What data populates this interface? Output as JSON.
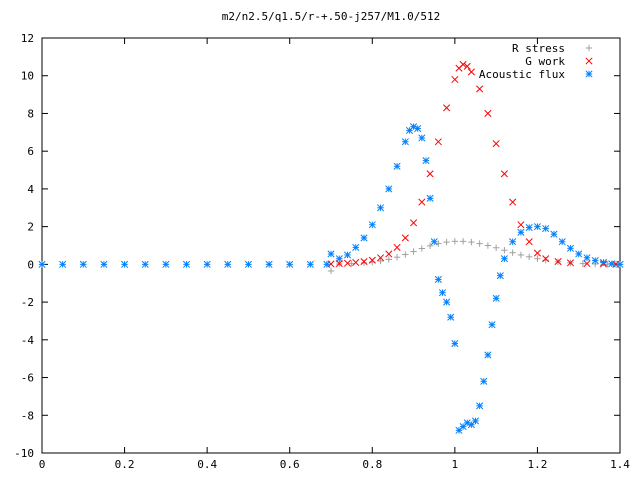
{
  "chart_data": {
    "type": "scatter",
    "title": "m2/n2.5/q1.5/r-+.50-j257/M1.0/512",
    "xlabel": "",
    "ylabel": "",
    "xlim": [
      0,
      1.4
    ],
    "ylim": [
      -10,
      12
    ],
    "x_ticks": [
      "0",
      "0.2",
      "0.4",
      "0.6",
      "0.8",
      "1",
      "1.2",
      "1.4"
    ],
    "y_ticks": [
      "-10",
      "-8",
      "-6",
      "-4",
      "-2",
      "0",
      "2",
      "4",
      "6",
      "8",
      "10",
      "12"
    ],
    "grid": false,
    "legend_position": "top-right",
    "series": [
      {
        "name": "R stress",
        "marker": "+",
        "color": "#a0a0a0",
        "points": [
          [
            0.7,
            -0.35
          ],
          [
            0.72,
            0.02
          ],
          [
            0.75,
            0.04
          ],
          [
            0.78,
            0.08
          ],
          [
            0.8,
            0.12
          ],
          [
            0.82,
            0.18
          ],
          [
            0.84,
            0.26
          ],
          [
            0.86,
            0.38
          ],
          [
            0.88,
            0.52
          ],
          [
            0.9,
            0.68
          ],
          [
            0.92,
            0.84
          ],
          [
            0.94,
            0.98
          ],
          [
            0.96,
            1.1
          ],
          [
            0.98,
            1.18
          ],
          [
            1.0,
            1.22
          ],
          [
            1.02,
            1.22
          ],
          [
            1.04,
            1.18
          ],
          [
            1.06,
            1.1
          ],
          [
            1.08,
            1.0
          ],
          [
            1.1,
            0.88
          ],
          [
            1.12,
            0.75
          ],
          [
            1.14,
            0.62
          ],
          [
            1.16,
            0.5
          ],
          [
            1.18,
            0.4
          ],
          [
            1.2,
            0.3
          ],
          [
            1.22,
            0.22
          ],
          [
            1.25,
            0.14
          ],
          [
            1.28,
            0.08
          ],
          [
            1.31,
            0.04
          ],
          [
            1.34,
            0.02
          ],
          [
            1.37,
            0.01
          ],
          [
            1.39,
            0.0
          ]
        ]
      },
      {
        "name": "G work",
        "marker": "x",
        "color": "#ff0000",
        "points": [
          [
            0.7,
            0.02
          ],
          [
            0.72,
            0.04
          ],
          [
            0.74,
            0.06
          ],
          [
            0.76,
            0.1
          ],
          [
            0.78,
            0.15
          ],
          [
            0.8,
            0.22
          ],
          [
            0.82,
            0.35
          ],
          [
            0.84,
            0.55
          ],
          [
            0.86,
            0.9
          ],
          [
            0.88,
            1.4
          ],
          [
            0.9,
            2.2
          ],
          [
            0.92,
            3.3
          ],
          [
            0.94,
            4.8
          ],
          [
            0.96,
            6.5
          ],
          [
            0.98,
            8.3
          ],
          [
            1.0,
            9.8
          ],
          [
            1.01,
            10.4
          ],
          [
            1.02,
            10.6
          ],
          [
            1.03,
            10.5
          ],
          [
            1.04,
            10.2
          ],
          [
            1.06,
            9.3
          ],
          [
            1.08,
            8.0
          ],
          [
            1.1,
            6.4
          ],
          [
            1.12,
            4.8
          ],
          [
            1.14,
            3.3
          ],
          [
            1.16,
            2.1
          ],
          [
            1.18,
            1.2
          ],
          [
            1.2,
            0.6
          ],
          [
            1.22,
            0.3
          ],
          [
            1.25,
            0.15
          ],
          [
            1.28,
            0.08
          ],
          [
            1.32,
            0.04
          ],
          [
            1.36,
            0.02
          ],
          [
            1.39,
            0.0
          ]
        ]
      },
      {
        "name": "Acoustic flux",
        "marker": "*",
        "color": "#0080ff",
        "points": [
          [
            0.0,
            0.0
          ],
          [
            0.05,
            0.0
          ],
          [
            0.1,
            0.0
          ],
          [
            0.15,
            0.0
          ],
          [
            0.2,
            0.0
          ],
          [
            0.25,
            0.0
          ],
          [
            0.3,
            0.0
          ],
          [
            0.35,
            0.0
          ],
          [
            0.4,
            0.0
          ],
          [
            0.45,
            0.0
          ],
          [
            0.5,
            0.0
          ],
          [
            0.55,
            0.0
          ],
          [
            0.6,
            0.0
          ],
          [
            0.65,
            0.0
          ],
          [
            0.69,
            0.0
          ],
          [
            0.7,
            0.55
          ],
          [
            0.72,
            0.3
          ],
          [
            0.74,
            0.5
          ],
          [
            0.76,
            0.9
          ],
          [
            0.78,
            1.4
          ],
          [
            0.8,
            2.1
          ],
          [
            0.82,
            3.0
          ],
          [
            0.84,
            4.0
          ],
          [
            0.86,
            5.2
          ],
          [
            0.88,
            6.5
          ],
          [
            0.89,
            7.1
          ],
          [
            0.9,
            7.3
          ],
          [
            0.91,
            7.2
          ],
          [
            0.92,
            6.7
          ],
          [
            0.93,
            5.5
          ],
          [
            0.94,
            3.5
          ],
          [
            0.95,
            1.2
          ],
          [
            0.96,
            -0.8
          ],
          [
            0.97,
            -1.5
          ],
          [
            0.98,
            -2.0
          ],
          [
            0.99,
            -2.8
          ],
          [
            1.0,
            -4.2
          ],
          [
            1.01,
            -8.8
          ],
          [
            1.02,
            -8.6
          ],
          [
            1.03,
            -8.4
          ],
          [
            1.04,
            -8.5
          ],
          [
            1.05,
            -8.3
          ],
          [
            1.06,
            -7.5
          ],
          [
            1.07,
            -6.2
          ],
          [
            1.08,
            -4.8
          ],
          [
            1.09,
            -3.2
          ],
          [
            1.1,
            -1.8
          ],
          [
            1.11,
            -0.6
          ],
          [
            1.12,
            0.3
          ],
          [
            1.14,
            1.2
          ],
          [
            1.16,
            1.7
          ],
          [
            1.18,
            1.95
          ],
          [
            1.2,
            2.0
          ],
          [
            1.22,
            1.9
          ],
          [
            1.24,
            1.6
          ],
          [
            1.26,
            1.2
          ],
          [
            1.28,
            0.85
          ],
          [
            1.3,
            0.55
          ],
          [
            1.32,
            0.35
          ],
          [
            1.34,
            0.2
          ],
          [
            1.36,
            0.1
          ],
          [
            1.38,
            0.03
          ],
          [
            1.4,
            0.0
          ]
        ]
      }
    ]
  }
}
